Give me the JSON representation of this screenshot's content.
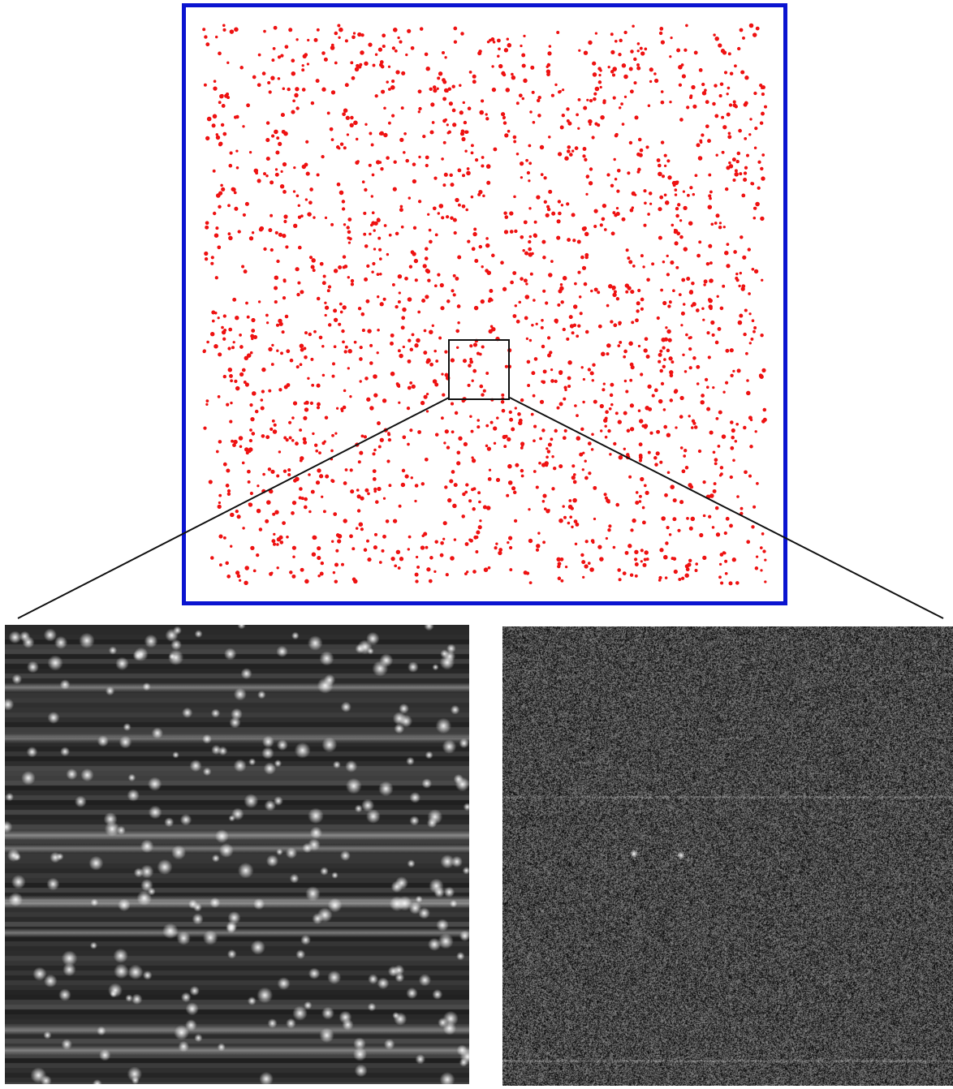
{
  "colors": {
    "frame_border": "#0a14d0",
    "dot_color": "#ee1111",
    "zoom_box": "#111111",
    "connector": "#111111",
    "left_background": "#2a2a2a",
    "right_background": "#555555"
  },
  "scatter": {
    "point_count": 2000,
    "seed": 7
  },
  "left_panel": {
    "bright_line_count": 9,
    "spot_count": 260
  },
  "right_panel": {
    "noise_level": 0.55
  }
}
